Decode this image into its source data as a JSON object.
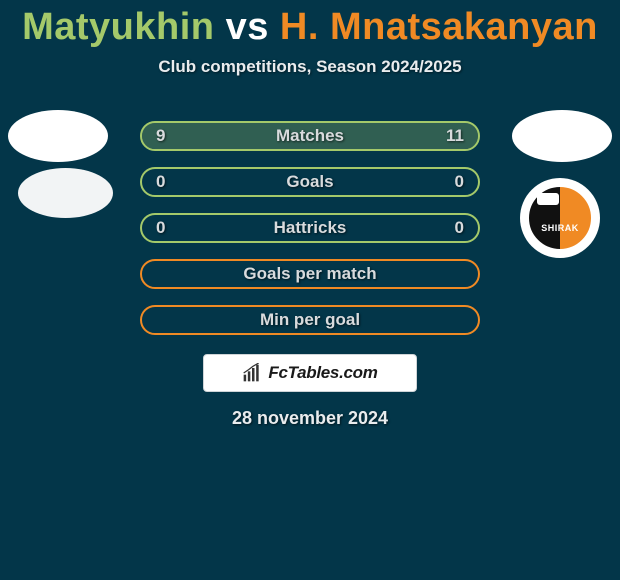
{
  "title": {
    "p1": "Matyukhin",
    "vs": "vs",
    "p2": "H. Mnatsakanyan"
  },
  "subtitle": "Club competitions, Season 2024/2025",
  "colors": {
    "bg": "#033649",
    "p1": "#a4c96a",
    "p2": "#f08a24",
    "text": "#e9ecee",
    "white": "#ffffff"
  },
  "rows": [
    {
      "label": "Matches",
      "left": "9",
      "right": "11",
      "leftPct": 45,
      "rightPct": 55,
      "side": "left"
    },
    {
      "label": "Goals",
      "left": "0",
      "right": "0",
      "leftPct": 0,
      "rightPct": 0,
      "side": "left"
    },
    {
      "label": "Hattricks",
      "left": "0",
      "right": "0",
      "leftPct": 0,
      "rightPct": 0,
      "side": "left"
    },
    {
      "label": "Goals per match",
      "left": "",
      "right": "",
      "leftPct": 0,
      "rightPct": 0,
      "side": "right"
    },
    {
      "label": "Min per goal",
      "left": "",
      "right": "",
      "leftPct": 0,
      "rightPct": 0,
      "side": "right"
    }
  ],
  "watermark": "FcTables.com",
  "date": "28 november 2024",
  "club_right_label": "SHIRAK"
}
